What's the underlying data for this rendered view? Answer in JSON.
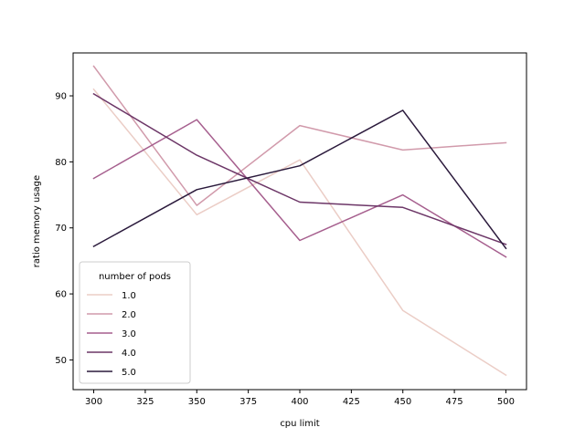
{
  "chart_data": {
    "type": "line",
    "xlabel": "cpu limit",
    "ylabel": "ratio memory usage",
    "x": [
      300,
      350,
      400,
      450,
      500
    ],
    "xlim": [
      290,
      510
    ],
    "ylim": [
      45.5,
      96.5
    ],
    "xticks": [
      300,
      325,
      350,
      375,
      400,
      425,
      450,
      475,
      500
    ],
    "yticks": [
      50,
      60,
      70,
      80,
      90
    ],
    "grid": false,
    "legend": {
      "title": "number of pods",
      "placement": "lower-left"
    },
    "series": [
      {
        "name": "1.0",
        "color": "#ebcdc6",
        "values": [
          91.0,
          72.0,
          80.3,
          57.5,
          47.7
        ]
      },
      {
        "name": "2.0",
        "color": "#d19aab",
        "values": [
          94.5,
          73.4,
          85.5,
          81.8,
          82.9
        ]
      },
      {
        "name": "3.0",
        "color": "#a65f8e",
        "values": [
          77.5,
          86.4,
          68.1,
          75.0,
          65.6
        ]
      },
      {
        "name": "4.0",
        "color": "#6c3667",
        "values": [
          90.3,
          81.0,
          73.9,
          73.1,
          67.5
        ]
      },
      {
        "name": "5.0",
        "color": "#2b1a3c",
        "values": [
          67.2,
          75.8,
          79.4,
          87.8,
          66.9
        ]
      }
    ]
  }
}
